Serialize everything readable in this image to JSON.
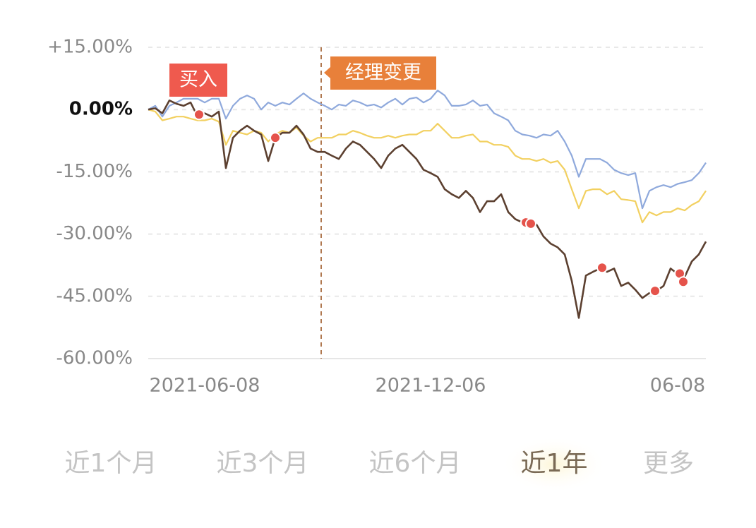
{
  "chart_data": {
    "type": "line",
    "xlim": [
      0,
      79
    ],
    "xticks": [
      {
        "value": 8,
        "label": "2021-06-08"
      },
      {
        "value": 40,
        "label": "2021-12-06"
      },
      {
        "value": 75,
        "label": "06-08"
      }
    ],
    "ylim": [
      -60,
      15
    ],
    "yticks": [
      {
        "value": 15,
        "label": "+15.00%"
      },
      {
        "value": 0,
        "label": "0.00%"
      },
      {
        "value": -15,
        "label": "-15.00%"
      },
      {
        "value": -30,
        "label": "-30.00%"
      },
      {
        "value": -45,
        "label": "-45.00%"
      },
      {
        "value": -60,
        "label": "-60.00%"
      }
    ],
    "grid": true,
    "series": [
      {
        "color": "#f2d060",
        "values": [
          0,
          -0.5,
          -2.6,
          -2.2,
          -1.7,
          -1.7,
          -2.2,
          -2.6,
          -2.6,
          -2.2,
          -2.9,
          -8.5,
          -5.1,
          -5.6,
          -6.0,
          -5.1,
          -5.6,
          -7.7,
          -6.0,
          -5.1,
          -5.6,
          -4.3,
          -6.3,
          -7.7,
          -6.8,
          -6.8,
          -6.8,
          -6.0,
          -6.0,
          -5.1,
          -5.6,
          -6.3,
          -6.8,
          -6.8,
          -6.3,
          -6.8,
          -6.3,
          -6.0,
          -6.0,
          -5.1,
          -5.1,
          -3.4,
          -5.1,
          -6.8,
          -6.8,
          -6.3,
          -6.0,
          -7.7,
          -7.7,
          -8.5,
          -8.5,
          -9.0,
          -11.1,
          -11.9,
          -11.9,
          -12.4,
          -11.9,
          -12.8,
          -12.4,
          -14.5,
          -19.2,
          -23.8,
          -19.6,
          -19.2,
          -19.2,
          -20.4,
          -19.6,
          -21.6,
          -21.8,
          -22.1,
          -27.2,
          -24.7,
          -25.5,
          -24.7,
          -24.7,
          -23.8,
          -24.3,
          -23.0,
          -22.1,
          -19.6
        ]
      },
      {
        "color": "#8fa9dc",
        "values": [
          0,
          0.9,
          -1.7,
          0.9,
          1.7,
          2.6,
          2.6,
          2.6,
          1.7,
          2.6,
          2.6,
          -2.2,
          0.9,
          2.6,
          3.4,
          2.6,
          0,
          1.7,
          0.9,
          1.7,
          1.2,
          2.6,
          3.9,
          2.6,
          1.7,
          0.9,
          0,
          1.2,
          0.9,
          2.2,
          1.7,
          0.9,
          1.2,
          0.5,
          1.7,
          2.6,
          1.2,
          2.6,
          2.9,
          1.7,
          2.6,
          4.6,
          3.4,
          0.9,
          0.9,
          1.2,
          2.2,
          0.9,
          1.2,
          -0.9,
          -1.7,
          -2.6,
          -5.1,
          -6.0,
          -6.3,
          -6.8,
          -6.0,
          -6.3,
          -5.1,
          -7.7,
          -11.1,
          -16.2,
          -11.9,
          -11.9,
          -11.9,
          -12.8,
          -14.5,
          -15.3,
          -15.8,
          -15.3,
          -23.8,
          -19.6,
          -18.7,
          -18.2,
          -18.7,
          -17.9,
          -17.5,
          -17.0,
          -15.3,
          -12.8
        ]
      },
      {
        "color": "#5c4030",
        "values": [
          0,
          0.3,
          -0.9,
          2.2,
          1.4,
          0.9,
          1.7,
          -1.7,
          -0.9,
          -1.7,
          -0.5,
          -14.1,
          -6.8,
          -5.1,
          -3.9,
          -5.1,
          -6.0,
          -12.4,
          -6.8,
          -5.6,
          -5.6,
          -3.9,
          -6.0,
          -9.4,
          -10.2,
          -10.2,
          -11.1,
          -11.9,
          -9.4,
          -7.7,
          -8.5,
          -10.2,
          -11.9,
          -14.1,
          -11.1,
          -9.4,
          -8.5,
          -10.2,
          -11.9,
          -14.5,
          -15.3,
          -16.2,
          -19.2,
          -20.4,
          -21.3,
          -19.6,
          -21.3,
          -24.7,
          -22.1,
          -22.1,
          -20.4,
          -24.7,
          -26.4,
          -27.2,
          -27.7,
          -27.7,
          -30.6,
          -32.3,
          -33.2,
          -34.9,
          -41.3,
          -50.2,
          -40.0,
          -39.1,
          -38.3,
          -39.1,
          -38.3,
          -42.5,
          -41.7,
          -43.4,
          -45.4,
          -44.2,
          -43.7,
          -42.5,
          -38.3,
          -39.6,
          -40.3,
          -36.6,
          -34.9,
          -31.8
        ]
      }
    ],
    "buy_points": {
      "label": "买入",
      "color": "#e5534b",
      "x": [
        7.2,
        18,
        53.5,
        54.2,
        64.3,
        71.8,
        75.3,
        75.8
      ],
      "values": [
        -1.2,
        -6.8,
        -27.2,
        -27.5,
        -38.1,
        -43.7,
        -39.5,
        -41.5
      ]
    },
    "annotations": [
      {
        "text": "经理变更",
        "x": 24.5
      }
    ]
  },
  "tabs": [
    "近1个月",
    "近3个月",
    "近6个月",
    "近1年",
    "更多"
  ],
  "active_tab": 3
}
